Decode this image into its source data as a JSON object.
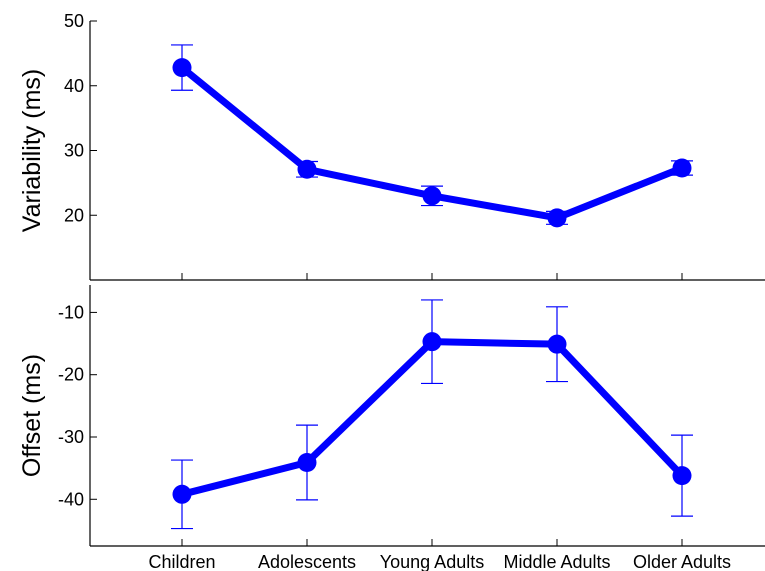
{
  "chart_data": [
    {
      "type": "line",
      "panel": "top",
      "title": "",
      "xlabel": "",
      "ylabel": "Variability (ms)",
      "categories": [
        "Children",
        "Adolescents",
        "Young Adults",
        "Middle Adults",
        "Older Adults"
      ],
      "ylim": [
        10,
        50
      ],
      "yticks": [
        20,
        30,
        40,
        50
      ],
      "color": "#0000ff",
      "series": [
        {
          "values": [
            42.8,
            27.1,
            23.0,
            19.6,
            27.3
          ],
          "error": [
            3.5,
            1.2,
            1.5,
            1.0,
            1.1
          ]
        }
      ],
      "grid": false
    },
    {
      "type": "line",
      "panel": "bottom",
      "title": "",
      "xlabel": "",
      "ylabel": "Offset (ms)",
      "categories": [
        "Children",
        "Adolescents",
        "Young Adults",
        "Middle Adults",
        "Older Adults"
      ],
      "ylim": [
        -47.5,
        -5.6
      ],
      "yticks": [
        -40,
        -30,
        -20,
        -10
      ],
      "color": "#0000ff",
      "series": [
        {
          "values": [
            -39.2,
            -34.1,
            -14.7,
            -15.1,
            -36.2
          ],
          "error": [
            5.5,
            6.0,
            6.7,
            6.0,
            6.5
          ]
        }
      ],
      "grid": false
    }
  ]
}
